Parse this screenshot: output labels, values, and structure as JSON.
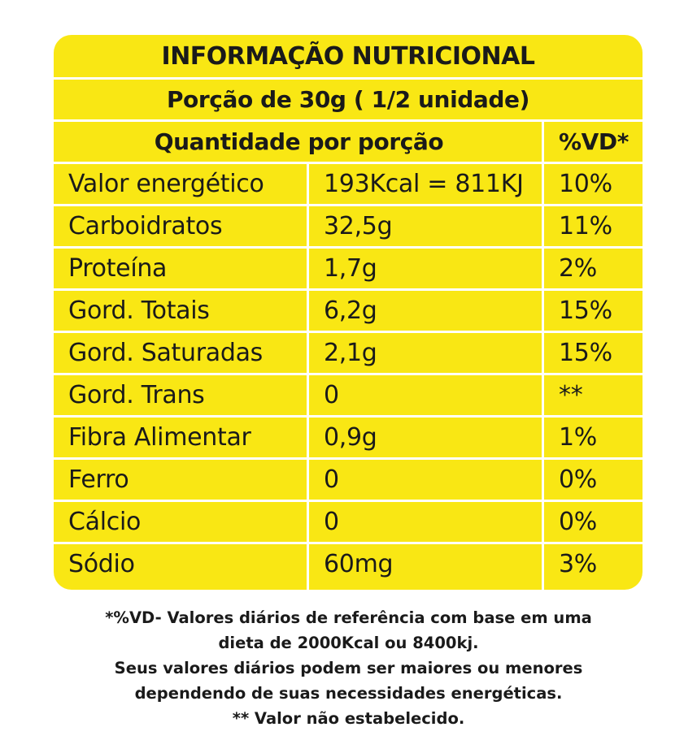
{
  "table": {
    "title": "INFORMAÇÃO NUTRICIONAL",
    "portion": "Porção de 30g ( 1/2 unidade)",
    "header_quantity": "Quantidade por porção",
    "header_vd": "%VD*",
    "rows": [
      {
        "name": "Valor energético",
        "quantity": "193Kcal = 811KJ",
        "vd": "10%"
      },
      {
        "name": "Carboidratos",
        "quantity": "32,5g",
        "vd": "11%"
      },
      {
        "name": "Proteína",
        "quantity": "1,7g",
        "vd": "2%"
      },
      {
        "name": "Gord. Totais",
        "quantity": "6,2g",
        "vd": "15%"
      },
      {
        "name": "Gord. Saturadas",
        "quantity": "2,1g",
        "vd": "15%"
      },
      {
        "name": "Gord. Trans",
        "quantity": "0",
        "vd": "**"
      },
      {
        "name": "Fibra Alimentar",
        "quantity": "0,9g",
        "vd": "1%"
      },
      {
        "name": "Ferro",
        "quantity": "0",
        "vd": "0%"
      },
      {
        "name": "Cálcio",
        "quantity": "0",
        "vd": "0%"
      },
      {
        "name": "Sódio",
        "quantity": "60mg",
        "vd": "3%"
      }
    ]
  },
  "footnote": {
    "lines": [
      "*%VD- Valores diários de referência com base em uma",
      "dieta de 2000Kcal ou 8400kj.",
      "Seus valores diários podem ser maiores ou menores",
      "dependendo de suas necessidades energéticas.",
      "** Valor não estabelecido."
    ]
  },
  "colors": {
    "background": "#f9e714",
    "divider": "#ffffff",
    "text": "#1a1a1a"
  }
}
